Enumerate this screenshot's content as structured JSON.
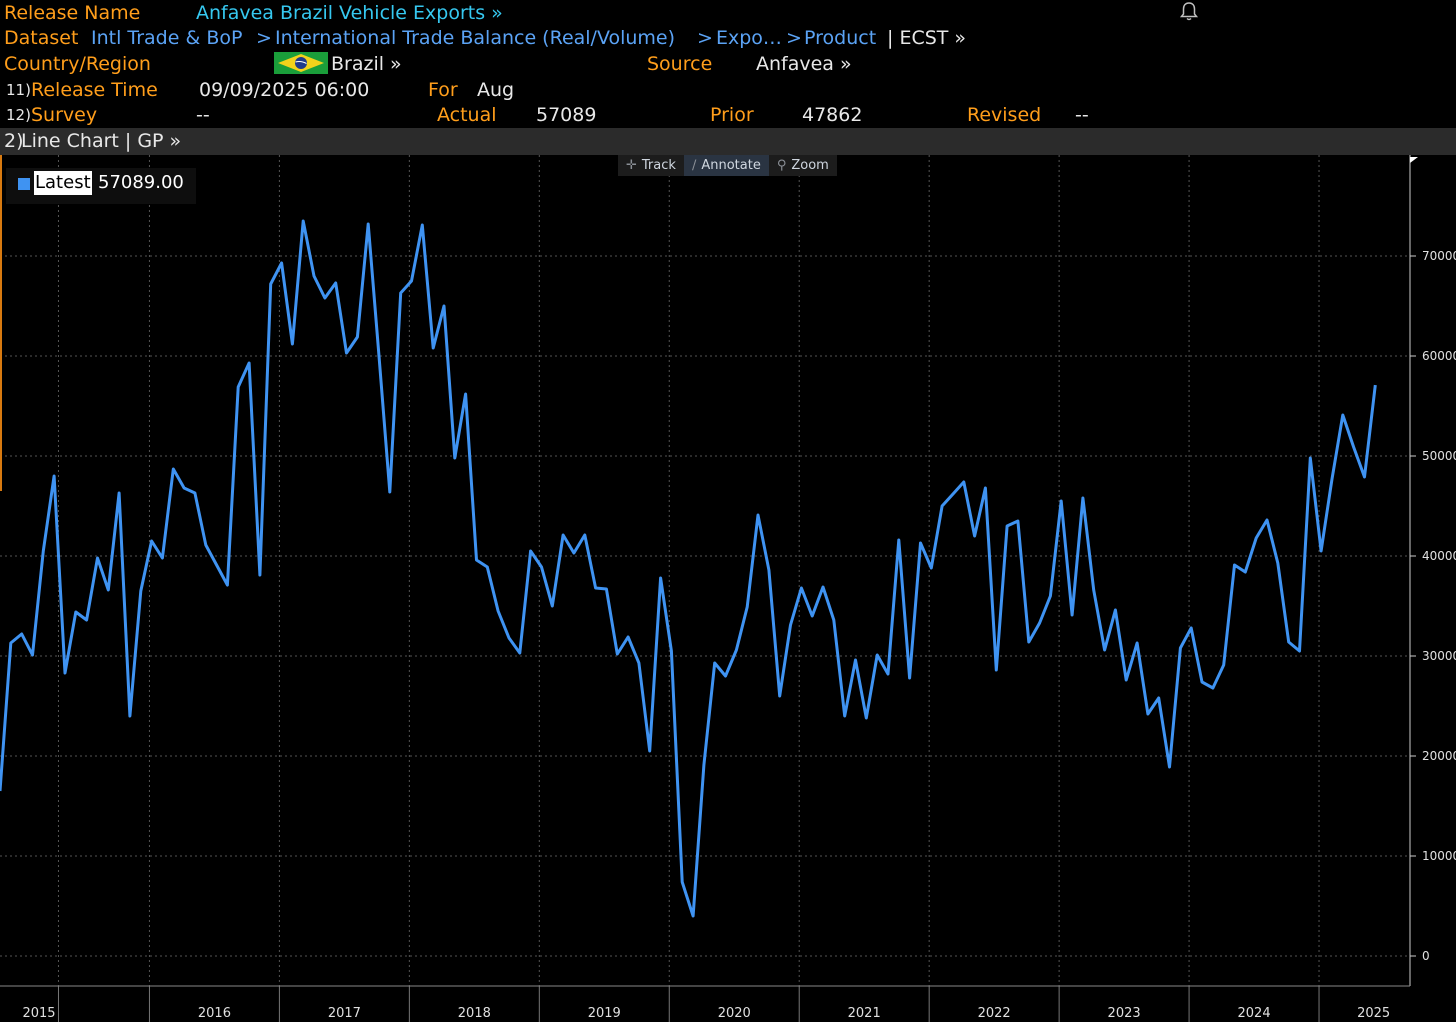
{
  "header": {
    "release_name_label": "Release Name",
    "release_name_value": "Anfavea Brazil Vehicle Exports »",
    "dataset_label": "Dataset",
    "dataset_path": [
      "Intl Trade & BoP",
      "International Trade Balance (Real/Volume)",
      "Expo…",
      "Product"
    ],
    "dataset_ticker": "| ECST »",
    "country_label": "Country/Region",
    "country_value": "Brazil »",
    "source_label": "Source",
    "source_value": "Anfavea »",
    "release_time_num": "11)",
    "release_time_label": "Release Time",
    "release_time_value": "09/09/2025 06:00",
    "for_label": "For",
    "for_value": "Aug",
    "survey_num": "12)",
    "survey_label": "Survey",
    "survey_value": "--",
    "actual_label": "Actual",
    "actual_value": "57089",
    "prior_label": "Prior",
    "prior_value": "47862",
    "revised_label": "Revised",
    "revised_value": "--"
  },
  "panel": {
    "num": "2)",
    "title": "Line Chart | GP »"
  },
  "toolbar": {
    "track": "Track",
    "annotate": "Annotate",
    "zoom": "Zoom"
  },
  "legend": {
    "tag": "Latest",
    "value": "57089.00"
  },
  "colors": {
    "line": "#3f93f2",
    "label_orange": "#ff9e1b",
    "title_cyan": "#36c8f0",
    "link_blue": "#5ba3f5"
  },
  "chart_data": {
    "type": "line",
    "title": "Anfavea Brazil Vehicle Exports",
    "xlabel": "",
    "ylabel": "",
    "ylim": [
      0,
      80000
    ],
    "y_ticks": [
      0,
      10000,
      20000,
      30000,
      40000,
      50000,
      60000,
      70000
    ],
    "y_tick_labels": [
      "0",
      "10000",
      "20000",
      "30000",
      "40000",
      "50000",
      "60000",
      "70000"
    ],
    "x_range": [
      2014.85,
      2025.7
    ],
    "year_labels": [
      "2015",
      "2016",
      "2017",
      "2018",
      "2019",
      "2020",
      "2021",
      "2022",
      "2023",
      "2024",
      "2025"
    ],
    "year_label_pos": [
      2015.15,
      2016.5,
      2017.5,
      2018.5,
      2019.5,
      2020.5,
      2021.5,
      2022.5,
      2023.5,
      2024.5,
      2025.42
    ],
    "year_bounds": [
      2015.3,
      2016,
      2017,
      2018,
      2019,
      2020,
      2021,
      2022,
      2023,
      2024,
      2025
    ],
    "series": [
      {
        "name": "Brazil Vehicle Exports",
        "start_year": 2014.85,
        "step": 0.08333,
        "values": [
          16500,
          31300,
          32200,
          30100,
          40500,
          48000,
          28300,
          34400,
          33600,
          39800,
          36600,
          46300,
          24000,
          36500,
          41500,
          39800,
          48700,
          46800,
          46300,
          41100,
          39100,
          37100,
          56900,
          59300,
          38100,
          67200,
          69300,
          61200,
          73500,
          68000,
          65800,
          67300,
          60300,
          61900,
          73200,
          60000,
          46400,
          66300,
          67500,
          73100,
          60800,
          65000,
          49800,
          56200,
          39600,
          38900,
          34500,
          31800,
          30300,
          40500,
          38900,
          35000,
          42100,
          40300,
          42100,
          36800,
          36700,
          30200,
          31900,
          29300,
          20500,
          37800,
          30500,
          7400,
          4000,
          19100,
          29300,
          28000,
          30600,
          34900,
          44100,
          38600,
          26000,
          33100,
          36800,
          34000,
          36900,
          33600,
          24000,
          29600,
          23800,
          30100,
          28200,
          41600,
          27800,
          41300,
          38800,
          45000,
          46200,
          47400,
          42000,
          46800,
          28600,
          43000,
          43500,
          31400,
          33300,
          36000,
          45500,
          34100,
          45800,
          36600,
          30600,
          34600,
          27600,
          31300,
          24200,
          25800,
          18900,
          30800,
          32800,
          27400,
          26800,
          29100,
          39100,
          38400,
          41800,
          43600,
          39300,
          31400,
          30500,
          49800,
          40500,
          47700,
          54100,
          50900,
          47900,
          57089
        ]
      }
    ],
    "latest": 57089
  }
}
